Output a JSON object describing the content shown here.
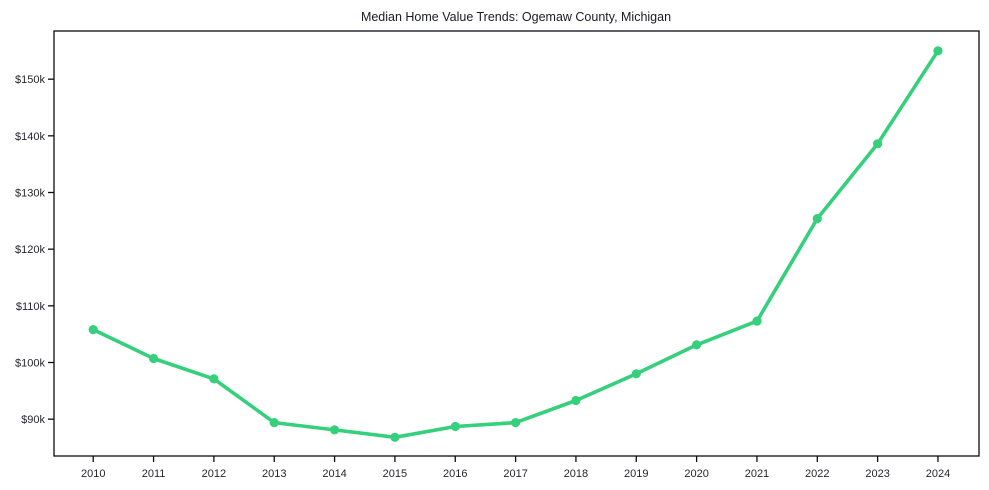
{
  "chart_data": {
    "type": "line",
    "title": "Median Home Value Trends: Ogemaw County, Michigan",
    "xlabel": "",
    "ylabel": "",
    "x": [
      2010,
      2011,
      2012,
      2013,
      2014,
      2015,
      2016,
      2017,
      2018,
      2019,
      2020,
      2021,
      2022,
      2023,
      2024
    ],
    "series": [
      {
        "name": "Median Home Value",
        "values": [
          105800,
          100700,
          97100,
          89400,
          88100,
          86800,
          88700,
          89400,
          93300,
          98000,
          103100,
          107300,
          125400,
          138600,
          155000
        ]
      }
    ],
    "xlim": [
      2009.35,
      2024.68
    ],
    "ylim": [
      83500,
      158500
    ],
    "yticks": [
      {
        "value": 90000,
        "label": "$90k"
      },
      {
        "value": 100000,
        "label": "$100k"
      },
      {
        "value": 110000,
        "label": "$110k"
      },
      {
        "value": 120000,
        "label": "$120k"
      },
      {
        "value": 130000,
        "label": "$130k"
      },
      {
        "value": 140000,
        "label": "$140k"
      },
      {
        "value": 150000,
        "label": "$150k"
      }
    ],
    "xticks": [
      {
        "value": 2010,
        "label": "2010"
      },
      {
        "value": 2011,
        "label": "2011"
      },
      {
        "value": 2012,
        "label": "2012"
      },
      {
        "value": 2013,
        "label": "2013"
      },
      {
        "value": 2014,
        "label": "2014"
      },
      {
        "value": 2015,
        "label": "2015"
      },
      {
        "value": 2016,
        "label": "2016"
      },
      {
        "value": 2017,
        "label": "2017"
      },
      {
        "value": 2018,
        "label": "2018"
      },
      {
        "value": 2019,
        "label": "2019"
      },
      {
        "value": 2020,
        "label": "2020"
      },
      {
        "value": 2021,
        "label": "2021"
      },
      {
        "value": 2022,
        "label": "2022"
      },
      {
        "value": 2023,
        "label": "2023"
      },
      {
        "value": 2024,
        "label": "2024"
      }
    ],
    "grid": false,
    "legend": "none",
    "marker": "circle",
    "colors": {
      "line": "#36cf7c",
      "marker": "#36cf7c",
      "spine": "#0c0c14",
      "tick": "#0c0c14",
      "text": "#26262e",
      "background": "#ffffff"
    }
  }
}
